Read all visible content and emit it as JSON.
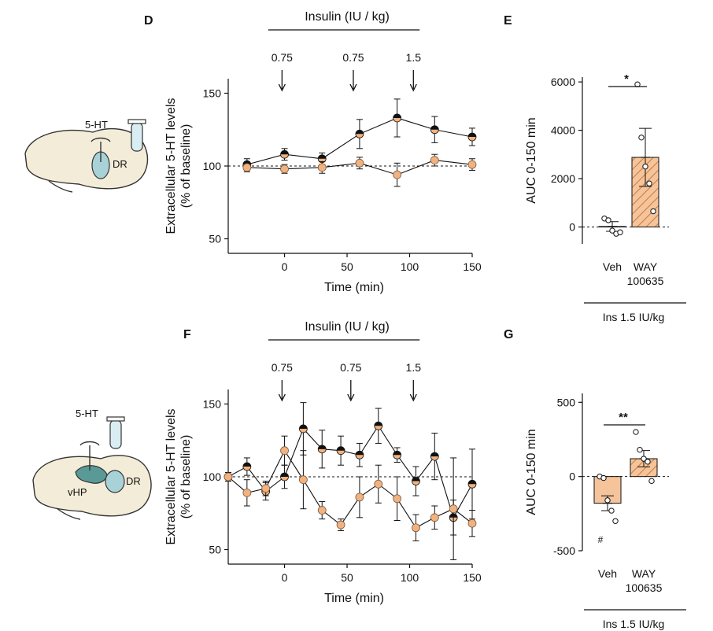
{
  "colors": {
    "orange": "#f2b27f",
    "black": "#111111",
    "bar_orange": "#f5c49a",
    "bar_hatch": "#c77a3f",
    "vessel": "#a9d2d8",
    "brain": "#f3ecd8",
    "vhp": "#5a9a96"
  },
  "panel_labels": {
    "D": "D",
    "E": "E",
    "F": "F",
    "G": "G"
  },
  "schematics": {
    "top": {
      "ht": "5-HT",
      "region": "DR"
    },
    "bottom": {
      "ht": "5-HT",
      "region1": "vHP",
      "region2": "DR"
    }
  },
  "chart_data": [
    {
      "panel": "D",
      "type": "line",
      "top_label": "Insulin (IU / kg)",
      "injections": [
        {
          "x": -2,
          "label": "0.75"
        },
        {
          "x": 55,
          "label": "0.75"
        },
        {
          "x": 103,
          "label": "1.5"
        }
      ],
      "xlabel": "Time (min)",
      "ylabel": [
        "Extracellular 5-HT levels",
        "(% of baseline)"
      ],
      "xticks": [
        0,
        50,
        100,
        150
      ],
      "yticks": [
        50,
        100,
        150
      ],
      "xlim": [
        -45,
        150
      ],
      "ylim": [
        40,
        160
      ],
      "baseline": 100,
      "series": [
        {
          "marker": "half-black",
          "x": [
            -30,
            0,
            30,
            60,
            90,
            120,
            150
          ],
          "y": [
            101,
            108,
            105,
            122,
            133,
            125,
            120
          ],
          "err": [
            4,
            4,
            4,
            10,
            13,
            9,
            6
          ]
        },
        {
          "marker": "orange",
          "x": [
            -30,
            0,
            30,
            60,
            90,
            120,
            150
          ],
          "y": [
            99,
            98,
            99,
            102,
            94,
            104,
            101
          ],
          "err": [
            3,
            3,
            4,
            4,
            8,
            4,
            4
          ]
        }
      ]
    },
    {
      "panel": "E",
      "type": "bar",
      "ylabel": "AUC 0-150 min",
      "yticks": [
        0,
        2000,
        4000,
        6000
      ],
      "ylim": [
        -700,
        6200
      ],
      "categories": [
        "Veh",
        "WAY\n100635"
      ],
      "group_label": "Ins 1.5 IU/kg",
      "significance": "*",
      "bars": [
        {
          "value": 20,
          "err": 200,
          "hatched": false,
          "points": [
            350,
            280,
            -150,
            -280,
            -220
          ]
        },
        {
          "value": 2880,
          "err": 1200,
          "hatched": true,
          "points": [
            5900,
            3700,
            2500,
            1800,
            650
          ]
        }
      ]
    },
    {
      "panel": "F",
      "type": "line",
      "top_label": "Insulin (IU / kg)",
      "injections": [
        {
          "x": -2,
          "label": "0.75"
        },
        {
          "x": 53,
          "label": "0.75"
        },
        {
          "x": 103,
          "label": "1.5"
        }
      ],
      "xlabel": "Time (min)",
      "ylabel": [
        "Extracellular 5-HT levels",
        "(% of baseline)"
      ],
      "xticks": [
        0,
        50,
        100,
        150
      ],
      "yticks": [
        50,
        100,
        150
      ],
      "xlim": [
        -45,
        150
      ],
      "ylim": [
        40,
        160
      ],
      "baseline": 100,
      "series": [
        {
          "marker": "half-black",
          "x": [
            -45,
            -30,
            -15,
            0,
            15,
            30,
            45,
            60,
            75,
            90,
            105,
            120,
            135,
            150
          ],
          "y": [
            100,
            107,
            90,
            100,
            133,
            119,
            118,
            115,
            135,
            115,
            97,
            114,
            72,
            95
          ],
          "err": [
            3,
            6,
            6,
            8,
            18,
            13,
            10,
            8,
            12,
            5,
            10,
            16,
            12,
            24
          ]
        },
        {
          "marker": "orange",
          "x": [
            -45,
            -30,
            -15,
            0,
            15,
            30,
            45,
            60,
            75,
            90,
            105,
            120,
            135,
            150
          ],
          "y": [
            100,
            89,
            92,
            118,
            98,
            77,
            67,
            86,
            95,
            85,
            65,
            72,
            78,
            68
          ],
          "err": [
            3,
            9,
            5,
            10,
            20,
            6,
            4,
            14,
            13,
            15,
            9,
            8,
            35,
            9
          ]
        }
      ]
    },
    {
      "panel": "G",
      "type": "bar",
      "ylabel": "AUC 0-150 min",
      "yticks": [
        -500,
        0,
        500
      ],
      "ylim": [
        -500,
        560
      ],
      "categories": [
        "Veh",
        "WAY\n100635"
      ],
      "group_label": "Ins 1.5 IU/kg",
      "significance": "**",
      "hash_mark": "#",
      "bars": [
        {
          "value": -180,
          "err": 50,
          "hatched": false,
          "points": [
            0,
            -10,
            -160,
            -230,
            -300
          ]
        },
        {
          "value": 120,
          "err": 55,
          "hatched": true,
          "points": [
            300,
            180,
            120,
            100,
            -30
          ]
        }
      ]
    }
  ]
}
